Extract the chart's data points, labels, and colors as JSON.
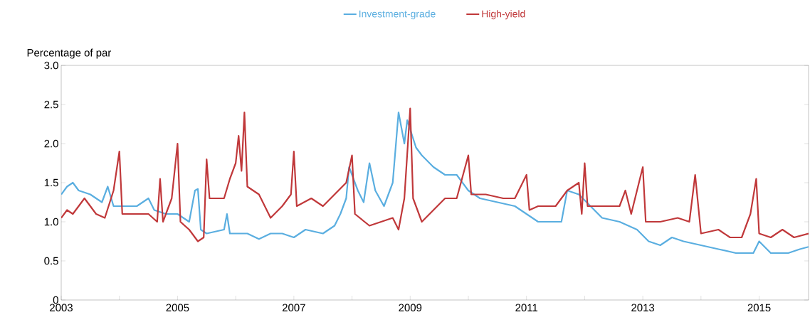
{
  "chart_data": {
    "type": "line",
    "ylabel": "Percentage of par",
    "legend": "top",
    "marker": "none",
    "line_style": "solid",
    "grid": false,
    "xlim": [
      2003,
      2015.85
    ],
    "xticks": [
      2003,
      {
        "value": 2004,
        "label": null
      },
      2005,
      {
        "value": 2006,
        "label": null
      },
      2007,
      {
        "value": 2008,
        "label": null
      },
      2009,
      {
        "value": 2010,
        "label": null
      },
      2011,
      {
        "value": 2012,
        "label": null
      },
      2013,
      {
        "value": 2014,
        "label": null
      },
      2015
    ],
    "ylim": [
      0,
      3
    ],
    "yticks": [
      0,
      0.5,
      {
        "value": 1,
        "label": "1.0"
      },
      1.5,
      {
        "value": 2,
        "label": "2.0"
      },
      2.5,
      {
        "value": 3,
        "label": "3.0"
      }
    ],
    "series": [
      {
        "name": "Investment-grade",
        "color": "#5aaee0",
        "x": [
          2003.0,
          2003.1,
          2003.2,
          2003.3,
          2003.5,
          2003.7,
          2003.8,
          2003.9,
          2004.0,
          2004.3,
          2004.5,
          2004.6,
          2004.8,
          2005.0,
          2005.2,
          2005.3,
          2005.35,
          2005.4,
          2005.5,
          2005.8,
          2005.85,
          2005.9,
          2006.2,
          2006.4,
          2006.6,
          2006.8,
          2007.0,
          2007.2,
          2007.5,
          2007.7,
          2007.8,
          2007.9,
          2007.95,
          2008.1,
          2008.2,
          2008.3,
          2008.4,
          2008.55,
          2008.7,
          2008.8,
          2008.9,
          2008.95,
          2009.1,
          2009.2,
          2009.4,
          2009.6,
          2009.8,
          2010.0,
          2010.2,
          2010.5,
          2010.8,
          2011.0,
          2011.2,
          2011.4,
          2011.6,
          2011.7,
          2011.9,
          2012.1,
          2012.3,
          2012.6,
          2012.9,
          2013.1,
          2013.3,
          2013.5,
          2013.7,
          2014.0,
          2014.3,
          2014.6,
          2014.9,
          2015.0,
          2015.2,
          2015.5,
          2015.7,
          2015.85
        ],
        "values": [
          1.35,
          1.45,
          1.5,
          1.4,
          1.35,
          1.25,
          1.45,
          1.2,
          1.2,
          1.2,
          1.3,
          1.15,
          1.1,
          1.1,
          1.0,
          1.4,
          1.42,
          0.9,
          0.85,
          0.9,
          1.1,
          0.85,
          0.85,
          0.78,
          0.85,
          0.85,
          0.8,
          0.9,
          0.85,
          0.95,
          1.1,
          1.3,
          1.7,
          1.4,
          1.25,
          1.75,
          1.4,
          1.2,
          1.5,
          2.4,
          2.0,
          2.3,
          1.95,
          1.85,
          1.7,
          1.6,
          1.6,
          1.4,
          1.3,
          1.25,
          1.2,
          1.1,
          1.0,
          1.0,
          1.0,
          1.4,
          1.35,
          1.2,
          1.05,
          1.0,
          0.9,
          0.75,
          0.7,
          0.8,
          0.75,
          0.7,
          0.65,
          0.6,
          0.6,
          0.75,
          0.6,
          0.6,
          0.65,
          0.68
        ]
      },
      {
        "name": "High-yield",
        "color": "#c0383a",
        "x": [
          2003.0,
          2003.1,
          2003.2,
          2003.4,
          2003.6,
          2003.75,
          2003.9,
          2004.0,
          2004.05,
          2004.3,
          2004.5,
          2004.65,
          2004.7,
          2004.75,
          2004.9,
          2005.0,
          2005.05,
          2005.2,
          2005.35,
          2005.45,
          2005.5,
          2005.55,
          2005.8,
          2005.9,
          2006.0,
          2006.05,
          2006.1,
          2006.15,
          2006.2,
          2006.4,
          2006.6,
          2006.8,
          2006.95,
          2007.0,
          2007.05,
          2007.3,
          2007.5,
          2007.7,
          2007.9,
          2008.0,
          2008.05,
          2008.3,
          2008.5,
          2008.7,
          2008.8,
          2008.9,
          2009.0,
          2009.05,
          2009.2,
          2009.4,
          2009.6,
          2009.8,
          2010.0,
          2010.05,
          2010.3,
          2010.6,
          2010.8,
          2011.0,
          2011.05,
          2011.2,
          2011.5,
          2011.7,
          2011.9,
          2011.95,
          2012.0,
          2012.05,
          2012.3,
          2012.6,
          2012.7,
          2012.8,
          2013.0,
          2013.05,
          2013.3,
          2013.6,
          2013.8,
          2013.9,
          2014.0,
          2014.3,
          2014.5,
          2014.7,
          2014.85,
          2014.95,
          2015.0,
          2015.2,
          2015.4,
          2015.6,
          2015.85
        ],
        "values": [
          1.05,
          1.15,
          1.1,
          1.3,
          1.1,
          1.05,
          1.4,
          1.9,
          1.1,
          1.1,
          1.1,
          1.0,
          1.55,
          1.0,
          1.3,
          2.0,
          1.0,
          0.9,
          0.75,
          0.8,
          1.8,
          1.3,
          1.3,
          1.55,
          1.75,
          2.1,
          1.65,
          2.4,
          1.45,
          1.35,
          1.05,
          1.2,
          1.35,
          1.9,
          1.2,
          1.3,
          1.2,
          1.35,
          1.5,
          1.85,
          1.1,
          0.95,
          1.0,
          1.05,
          0.9,
          1.3,
          2.45,
          1.3,
          1.0,
          1.15,
          1.3,
          1.3,
          1.85,
          1.35,
          1.35,
          1.3,
          1.3,
          1.6,
          1.15,
          1.2,
          1.2,
          1.4,
          1.5,
          1.1,
          1.75,
          1.2,
          1.2,
          1.2,
          1.4,
          1.1,
          1.7,
          1.0,
          1.0,
          1.05,
          1.0,
          1.6,
          0.85,
          0.9,
          0.8,
          0.8,
          1.1,
          1.55,
          0.85,
          0.8,
          0.9,
          0.8,
          0.85
        ]
      }
    ]
  }
}
